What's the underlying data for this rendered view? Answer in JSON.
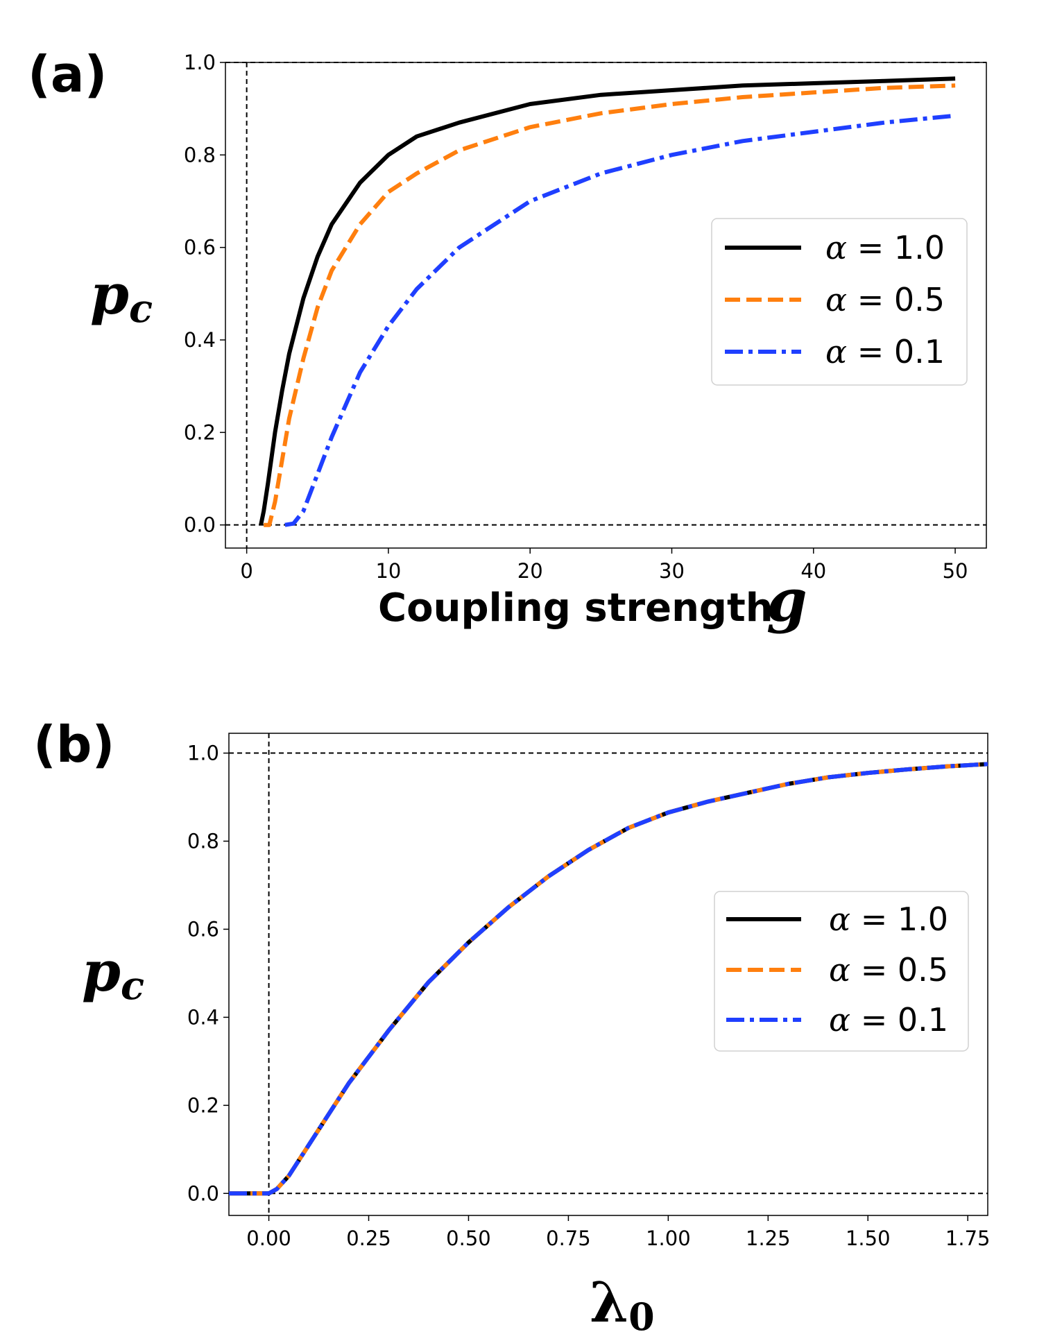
{
  "chart_data": [
    {
      "type": "line",
      "panel_label": "(a)",
      "xlabel": "Coupling strength",
      "xlabel_symbol": "g",
      "ylabel": "p",
      "ylabel_sub": "c",
      "xlim": [
        -1.5,
        52.2
      ],
      "ylim": [
        -0.05,
        1.0
      ],
      "xticks": [
        0,
        10,
        20,
        30,
        40,
        50
      ],
      "yticks": [
        0.0,
        0.2,
        0.4,
        0.6,
        0.8,
        1.0
      ],
      "ytick_labels": [
        "0.0",
        "0.2",
        "0.4",
        "0.6",
        "0.8",
        "1.0"
      ],
      "reference_lines": {
        "horizontal": [
          0.0,
          1.0
        ],
        "vertical": [
          0.0
        ]
      },
      "legend_position": "right",
      "series": [
        {
          "name": "α = 1.0",
          "alpha_value": "1.0",
          "color": "#000000",
          "style": "solid",
          "x": [
            1,
            1.2,
            1.5,
            2,
            2.5,
            3,
            4,
            5,
            6,
            8,
            10,
            12,
            15,
            20,
            25,
            30,
            35,
            40,
            45,
            50
          ],
          "y": [
            0.0,
            0.03,
            0.09,
            0.2,
            0.29,
            0.37,
            0.49,
            0.58,
            0.65,
            0.74,
            0.8,
            0.84,
            0.87,
            0.91,
            0.93,
            0.94,
            0.95,
            0.955,
            0.96,
            0.965
          ]
        },
        {
          "name": "α = 0.5",
          "alpha_value": "0.5",
          "color": "#ff7f0e",
          "style": "dashed",
          "x": [
            1.2,
            1.6,
            2,
            2.5,
            3,
            4,
            5,
            6,
            8,
            10,
            12,
            15,
            20,
            25,
            30,
            35,
            40,
            45,
            50
          ],
          "y": [
            0.0,
            0.0,
            0.05,
            0.14,
            0.23,
            0.36,
            0.47,
            0.55,
            0.65,
            0.72,
            0.76,
            0.81,
            0.86,
            0.89,
            0.91,
            0.925,
            0.935,
            0.945,
            0.95
          ]
        },
        {
          "name": "α = 0.1",
          "alpha_value": "0.1",
          "color": "#1f3fff",
          "style": "dashdot",
          "x": [
            2.7,
            3.3,
            4,
            5,
            6,
            7,
            8,
            10,
            12,
            15,
            20,
            25,
            30,
            35,
            40,
            45,
            50
          ],
          "y": [
            0.0,
            0.003,
            0.03,
            0.11,
            0.19,
            0.26,
            0.33,
            0.43,
            0.51,
            0.6,
            0.7,
            0.76,
            0.8,
            0.83,
            0.85,
            0.87,
            0.885
          ]
        }
      ]
    },
    {
      "type": "line",
      "panel_label": "(b)",
      "xlabel": "",
      "xlabel_symbol": "λ",
      "xlabel_sub": "0",
      "ylabel": "p",
      "ylabel_sub": "c",
      "xlim": [
        -0.1,
        1.8
      ],
      "ylim": [
        -0.05,
        1.045
      ],
      "xticks": [
        0.0,
        0.25,
        0.5,
        0.75,
        1.0,
        1.25,
        1.5,
        1.75
      ],
      "xtick_labels": [
        "0.00",
        "0.25",
        "0.50",
        "0.75",
        "1.00",
        "1.25",
        "1.50",
        "1.75"
      ],
      "yticks": [
        0.0,
        0.2,
        0.4,
        0.6,
        0.8,
        1.0
      ],
      "ytick_labels": [
        "0.0",
        "0.2",
        "0.4",
        "0.6",
        "0.8",
        "1.0"
      ],
      "reference_lines": {
        "horizontal": [
          0.0,
          1.0
        ],
        "vertical": [
          0.0
        ]
      },
      "legend_position": "right",
      "shared_curve": {
        "x": [
          -0.1,
          0.0,
          0.02,
          0.05,
          0.1,
          0.15,
          0.2,
          0.25,
          0.3,
          0.4,
          0.5,
          0.6,
          0.7,
          0.8,
          0.9,
          1.0,
          1.1,
          1.2,
          1.3,
          1.4,
          1.5,
          1.6,
          1.7,
          1.8
        ],
        "y": [
          0.0,
          0.0,
          0.01,
          0.04,
          0.11,
          0.18,
          0.25,
          0.31,
          0.37,
          0.48,
          0.57,
          0.65,
          0.72,
          0.78,
          0.83,
          0.865,
          0.89,
          0.91,
          0.93,
          0.945,
          0.955,
          0.963,
          0.97,
          0.975
        ]
      },
      "series": [
        {
          "name": "α = 1.0",
          "alpha_value": "1.0",
          "color": "#000000",
          "style": "solid"
        },
        {
          "name": "α = 0.5",
          "alpha_value": "0.5",
          "color": "#ff7f0e",
          "style": "dashed"
        },
        {
          "name": "α = 0.1",
          "alpha_value": "0.1",
          "color": "#1f3fff",
          "style": "dashdot"
        }
      ]
    }
  ]
}
